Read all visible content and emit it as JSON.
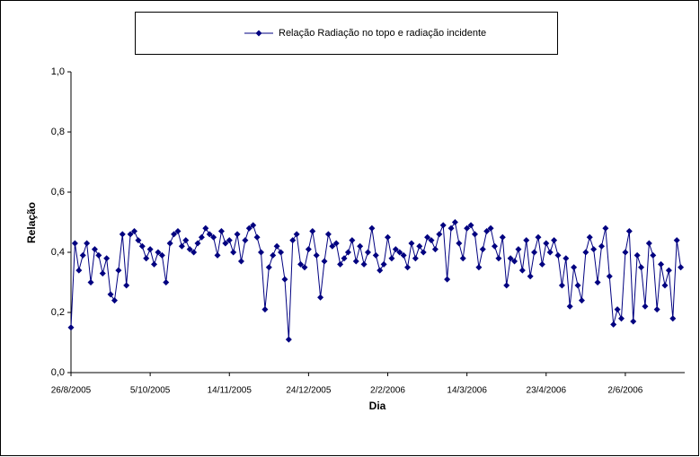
{
  "chart_data": {
    "type": "line",
    "xlabel": "Dia",
    "ylabel": "Relação",
    "ylim": [
      0,
      1
    ],
    "yticks": [
      {
        "value": 0,
        "label": "0,0"
      },
      {
        "value": 0.2,
        "label": "0,2"
      },
      {
        "value": 0.4,
        "label": "0,4"
      },
      {
        "value": 0.6,
        "label": "0,6"
      },
      {
        "value": 0.8,
        "label": "0,8"
      },
      {
        "value": 1,
        "label": "1,0"
      }
    ],
    "xlim": [
      "26/8/2005",
      "2/7/2006"
    ],
    "xticks": [
      "26/8/2005",
      "5/10/2005",
      "14/11/2005",
      "24/12/2005",
      "2/2/2006",
      "14/3/2006",
      "23/4/2006",
      "2/6/2006"
    ],
    "grid": false,
    "legend": "top",
    "x": [
      "26/8/2005",
      "28/8/2005",
      "30/8/2005",
      "1/9/2005",
      "3/9/2005",
      "5/9/2005",
      "7/9/2005",
      "9/9/2005",
      "11/9/2005",
      "13/9/2005",
      "15/9/2005",
      "17/9/2005",
      "19/9/2005",
      "21/9/2005",
      "23/9/2005",
      "25/9/2005",
      "27/9/2005",
      "29/9/2005",
      "1/10/2005",
      "3/10/2005",
      "5/10/2005",
      "7/10/2005",
      "9/10/2005",
      "11/10/2005",
      "13/10/2005",
      "15/10/2005",
      "17/10/2005",
      "19/10/2005",
      "21/10/2005",
      "23/10/2005",
      "25/10/2005",
      "27/10/2005",
      "29/10/2005",
      "31/10/2005",
      "2/11/2005",
      "4/11/2005",
      "6/11/2005",
      "8/11/2005",
      "10/11/2005",
      "12/11/2005",
      "14/11/2005",
      "16/11/2005",
      "18/11/2005",
      "20/11/2005",
      "22/11/2005",
      "24/11/2005",
      "26/11/2005",
      "28/11/2005",
      "30/11/2005",
      "2/12/2005",
      "4/12/2005",
      "6/12/2005",
      "8/12/2005",
      "10/12/2005",
      "12/12/2005",
      "14/12/2005",
      "16/12/2005",
      "18/12/2005",
      "20/12/2005",
      "22/12/2005",
      "24/12/2005",
      "26/12/2005",
      "28/12/2005",
      "30/12/2005",
      "1/1/2006",
      "3/1/2006",
      "5/1/2006",
      "7/1/2006",
      "9/1/2006",
      "11/1/2006",
      "13/1/2006",
      "15/1/2006",
      "17/1/2006",
      "19/1/2006",
      "21/1/2006",
      "23/1/2006",
      "25/1/2006",
      "27/1/2006",
      "29/1/2006",
      "31/1/2006",
      "2/2/2006",
      "4/2/2006",
      "6/2/2006",
      "8/2/2006",
      "10/2/2006",
      "12/2/2006",
      "14/2/2006",
      "16/2/2006",
      "18/2/2006",
      "20/2/2006",
      "22/2/2006",
      "24/2/2006",
      "26/2/2006",
      "28/2/2006",
      "2/3/2006",
      "4/3/2006",
      "6/3/2006",
      "8/3/2006",
      "10/3/2006",
      "12/3/2006",
      "14/3/2006",
      "16/3/2006",
      "18/3/2006",
      "20/3/2006",
      "22/3/2006",
      "24/3/2006",
      "26/3/2006",
      "28/3/2006",
      "30/3/2006",
      "1/4/2006",
      "3/4/2006",
      "5/4/2006",
      "7/4/2006",
      "9/4/2006",
      "11/4/2006",
      "13/4/2006",
      "15/4/2006",
      "17/4/2006",
      "19/4/2006",
      "21/4/2006",
      "23/4/2006",
      "25/4/2006",
      "27/4/2006",
      "29/4/2006",
      "1/5/2006",
      "3/5/2006",
      "5/5/2006",
      "7/5/2006",
      "9/5/2006",
      "11/5/2006",
      "13/5/2006",
      "15/5/2006",
      "17/5/2006",
      "19/5/2006",
      "21/5/2006",
      "23/5/2006",
      "25/5/2006",
      "27/5/2006",
      "29/5/2006",
      "31/5/2006",
      "2/6/2006",
      "4/6/2006",
      "6/6/2006",
      "8/6/2006",
      "10/6/2006",
      "12/6/2006",
      "14/6/2006",
      "16/6/2006",
      "18/6/2006",
      "20/6/2006",
      "22/6/2006",
      "24/6/2006",
      "26/6/2006",
      "28/6/2006",
      "30/6/2006"
    ],
    "series": [
      {
        "name": "Relação Radiação no topo e radiação incidente",
        "color": "#000080",
        "values": [
          0.15,
          0.43,
          0.34,
          0.39,
          0.43,
          0.3,
          0.41,
          0.39,
          0.33,
          0.38,
          0.26,
          0.24,
          0.34,
          0.46,
          0.29,
          0.46,
          0.47,
          0.44,
          0.42,
          0.38,
          0.41,
          0.36,
          0.4,
          0.39,
          0.3,
          0.43,
          0.46,
          0.47,
          0.42,
          0.44,
          0.41,
          0.4,
          0.43,
          0.45,
          0.48,
          0.46,
          0.45,
          0.39,
          0.47,
          0.43,
          0.44,
          0.4,
          0.46,
          0.37,
          0.44,
          0.48,
          0.49,
          0.45,
          0.4,
          0.21,
          0.35,
          0.39,
          0.42,
          0.4,
          0.31,
          0.11,
          0.44,
          0.46,
          0.36,
          0.35,
          0.41,
          0.47,
          0.39,
          0.25,
          0.37,
          0.46,
          0.42,
          0.43,
          0.36,
          0.38,
          0.4,
          0.44,
          0.37,
          0.42,
          0.36,
          0.4,
          0.48,
          0.39,
          0.34,
          0.36,
          0.45,
          0.38,
          0.41,
          0.4,
          0.39,
          0.35,
          0.43,
          0.38,
          0.42,
          0.4,
          0.45,
          0.44,
          0.41,
          0.46,
          0.49,
          0.31,
          0.48,
          0.5,
          0.43,
          0.38,
          0.48,
          0.49,
          0.46,
          0.35,
          0.41,
          0.47,
          0.48,
          0.42,
          0.38,
          0.45,
          0.29,
          0.38,
          0.37,
          0.41,
          0.34,
          0.44,
          0.32,
          0.4,
          0.45,
          0.36,
          0.43,
          0.4,
          0.44,
          0.39,
          0.29,
          0.38,
          0.22,
          0.35,
          0.29,
          0.24,
          0.4,
          0.45,
          0.41,
          0.3,
          0.42,
          0.48,
          0.32,
          0.16,
          0.21,
          0.18,
          0.4,
          0.47,
          0.17,
          0.39,
          0.35,
          0.22,
          0.43,
          0.39,
          0.21,
          0.36,
          0.29,
          0.34,
          0.18,
          0.44,
          0.35
        ]
      }
    ]
  }
}
